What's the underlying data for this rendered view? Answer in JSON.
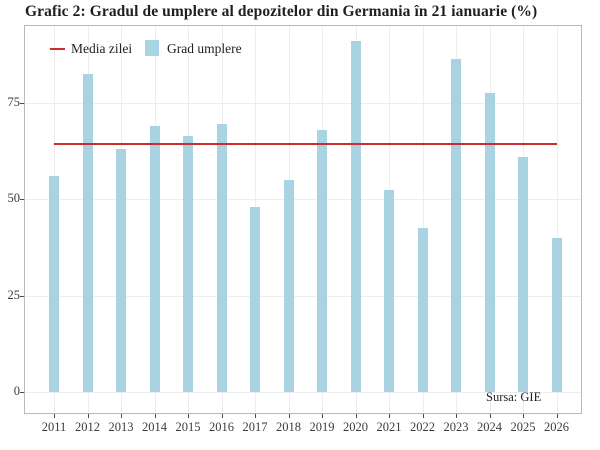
{
  "chart_data": {
    "type": "bar",
    "title": "Grafic 2: Gradul de umplere al depozitelor din Germania în 21 ianuarie (%)",
    "categories": [
      "2011",
      "2012",
      "2013",
      "2014",
      "2015",
      "2016",
      "2017",
      "2018",
      "2019",
      "2020",
      "2021",
      "2022",
      "2023",
      "2024",
      "2025",
      "2026"
    ],
    "values": [
      56,
      82.5,
      63,
      69,
      66.5,
      69.5,
      48,
      55,
      68,
      91,
      52.5,
      42.5,
      86.5,
      77.5,
      61,
      40
    ],
    "series_name": "Grad umplere",
    "average_line": {
      "label": "Media zilei",
      "value": 64.3
    },
    "yticks": [
      0,
      25,
      50,
      75
    ],
    "ylim": [
      0,
      95
    ],
    "xlabel": "",
    "ylabel": "",
    "grid": true,
    "legend_position": "top-left-inside",
    "annotations": [
      "Sursa: GIE"
    ]
  },
  "legend": {
    "average_label": "Media zilei",
    "bars_label": "Grad umplere"
  },
  "source_note": "Sursa: GIE",
  "colors": {
    "bar": "#A9D3E2",
    "average_line": "#CD2D2D",
    "grid": "#EDEDED",
    "panel_border": "#B9B9B9",
    "title_text": "#1F1F1F",
    "axis_text": "#3C3C3C"
  }
}
